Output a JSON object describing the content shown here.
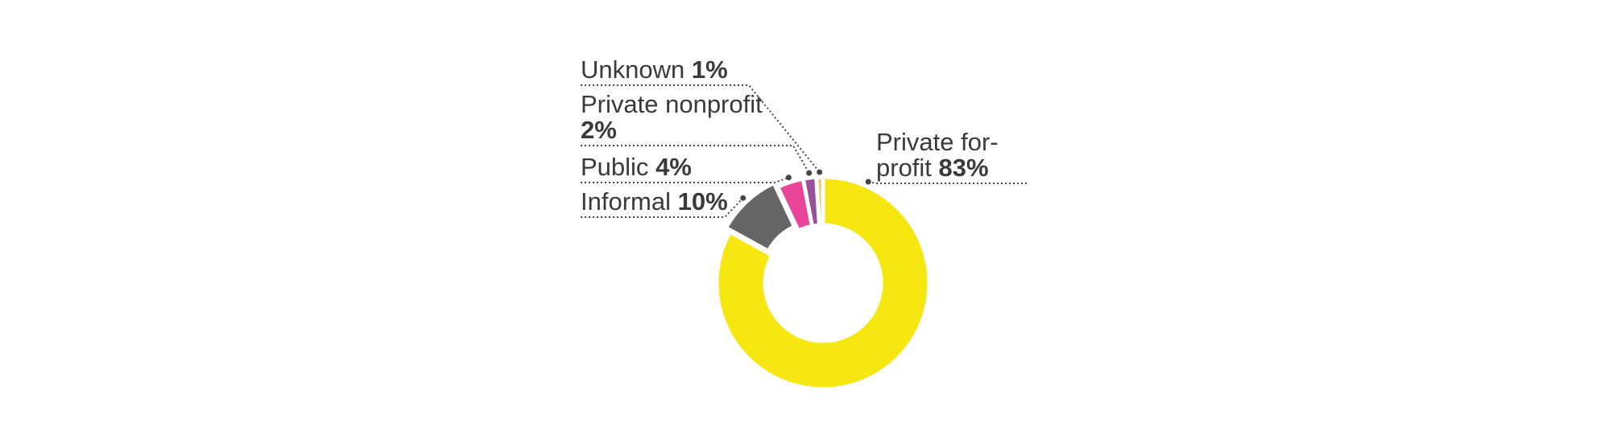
{
  "chart_data": {
    "type": "pie",
    "donut": true,
    "categories": [
      "Private for-profit",
      "Informal",
      "Public",
      "Private nonprofit",
      "Unknown"
    ],
    "values": [
      83,
      10,
      4,
      2,
      1
    ],
    "value_labels": [
      "83%",
      "10%",
      "4%",
      "2%",
      "1%"
    ],
    "colors": [
      "#f5e70f",
      "#666666",
      "#e8449a",
      "#9a4f9c",
      "#e9c46a"
    ]
  }
}
